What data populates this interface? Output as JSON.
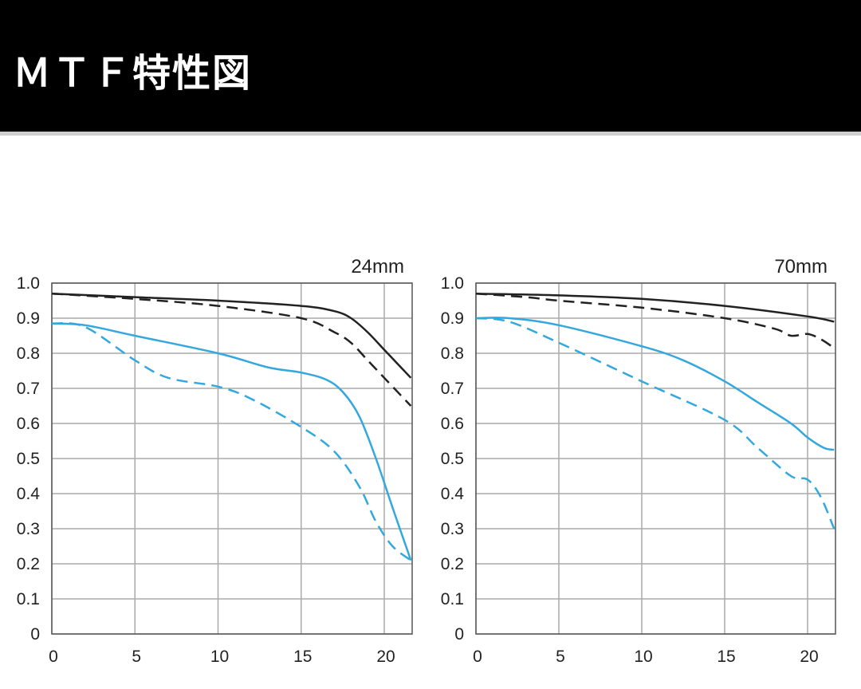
{
  "header": {
    "title": "ＭＴＦ特性図"
  },
  "chart_data": [
    {
      "type": "line",
      "title": "24mm",
      "xlim": [
        0,
        21.6
      ],
      "ylim": [
        0,
        1.0
      ],
      "xticks": [
        "0",
        "5",
        "10",
        "15",
        "20"
      ],
      "yticks": [
        "0",
        "0.1",
        "0.2",
        "0.3",
        "0.4",
        "0.5",
        "0.6",
        "0.7",
        "0.8",
        "0.9",
        "1.0"
      ],
      "grid": true,
      "series": [
        {
          "color": "#222222",
          "style": "solid",
          "x": [
            0,
            5,
            10,
            15,
            17,
            18,
            19,
            20,
            21,
            21.6
          ],
          "y": [
            0.97,
            0.96,
            0.95,
            0.935,
            0.92,
            0.9,
            0.86,
            0.81,
            0.76,
            0.73
          ]
        },
        {
          "color": "#222222",
          "style": "dashed",
          "x": [
            0,
            5,
            10,
            15,
            17,
            18,
            19,
            20,
            21,
            21.6
          ],
          "y": [
            0.97,
            0.955,
            0.935,
            0.9,
            0.86,
            0.83,
            0.78,
            0.73,
            0.68,
            0.65
          ]
        },
        {
          "color": "#33a8de",
          "style": "solid",
          "x": [
            0,
            2,
            5,
            10,
            13,
            15,
            16.5,
            17.5,
            18.5,
            19.5,
            20.5,
            21.6
          ],
          "y": [
            0.885,
            0.88,
            0.85,
            0.8,
            0.76,
            0.745,
            0.725,
            0.69,
            0.62,
            0.5,
            0.36,
            0.21
          ]
        },
        {
          "color": "#33a8de",
          "style": "dashed",
          "x": [
            0,
            2,
            5,
            7,
            10,
            12,
            15,
            17,
            18.5,
            19.5,
            20.5,
            21.6
          ],
          "y": [
            0.885,
            0.875,
            0.78,
            0.73,
            0.705,
            0.67,
            0.59,
            0.52,
            0.42,
            0.32,
            0.25,
            0.21
          ]
        }
      ]
    },
    {
      "type": "line",
      "title": "70mm",
      "xlim": [
        0,
        21.6
      ],
      "ylim": [
        0,
        1.0
      ],
      "xticks": [
        "0",
        "5",
        "10",
        "15",
        "20"
      ],
      "yticks": [
        "0",
        "0.1",
        "0.2",
        "0.3",
        "0.4",
        "0.5",
        "0.6",
        "0.7",
        "0.8",
        "0.9",
        "1.0"
      ],
      "grid": true,
      "series": [
        {
          "color": "#222222",
          "style": "solid",
          "x": [
            0,
            5,
            10,
            15,
            20,
            21.6
          ],
          "y": [
            0.97,
            0.965,
            0.955,
            0.935,
            0.905,
            0.89
          ]
        },
        {
          "color": "#222222",
          "style": "dashed",
          "x": [
            0,
            3,
            5,
            10,
            15,
            18,
            19,
            20,
            20.8,
            21.6
          ],
          "y": [
            0.97,
            0.96,
            0.95,
            0.93,
            0.9,
            0.87,
            0.85,
            0.855,
            0.84,
            0.815
          ]
        },
        {
          "color": "#33a8de",
          "style": "solid",
          "x": [
            0,
            2,
            5,
            10,
            12.5,
            15,
            17,
            19,
            20,
            21,
            21.6
          ],
          "y": [
            0.9,
            0.9,
            0.88,
            0.82,
            0.78,
            0.72,
            0.66,
            0.6,
            0.56,
            0.53,
            0.525
          ]
        },
        {
          "color": "#33a8de",
          "style": "dashed",
          "x": [
            0,
            2,
            5,
            10,
            15,
            17,
            19,
            20,
            20.8,
            21.6
          ],
          "y": [
            0.9,
            0.89,
            0.83,
            0.72,
            0.61,
            0.53,
            0.45,
            0.44,
            0.39,
            0.3
          ]
        }
      ]
    }
  ]
}
